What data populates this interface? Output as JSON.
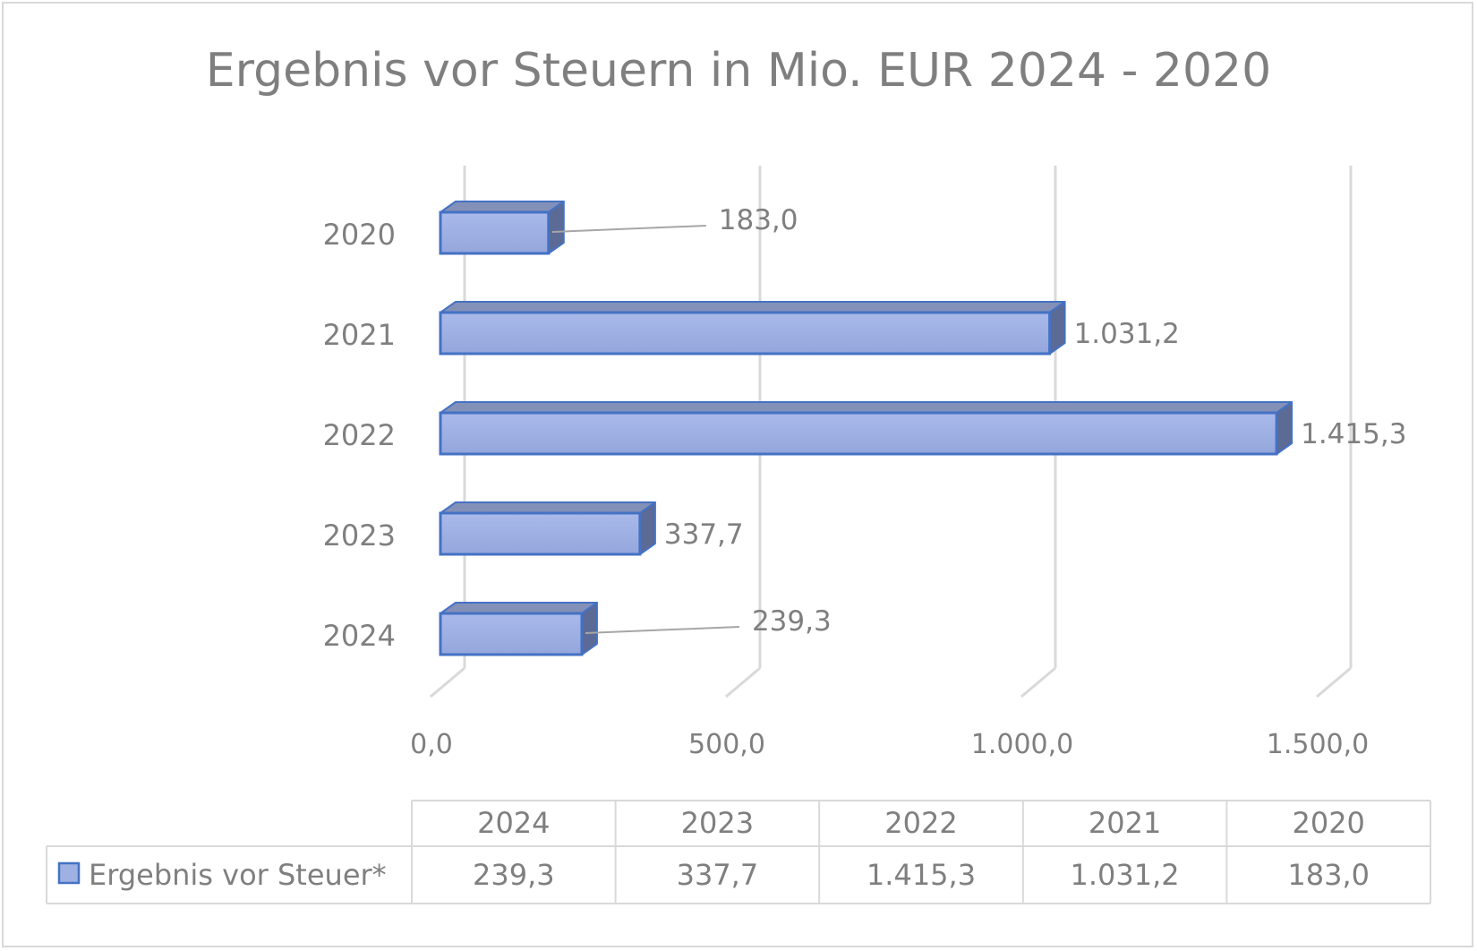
{
  "chart_data": {
    "type": "bar",
    "orientation": "horizontal",
    "style": "3d",
    "title": "Ergebnis vor Steuern in Mio. EUR 2024 - 2020",
    "categories": [
      "2020",
      "2021",
      "2022",
      "2023",
      "2024"
    ],
    "series": [
      {
        "name": "Ergebnis vor Steuer*",
        "values": [
          183.0,
          1031.2,
          1415.3,
          337.7,
          239.3
        ],
        "value_labels": [
          "183,0",
          "1.031,2",
          "1.415,3",
          "337,7",
          "239,3"
        ]
      }
    ],
    "xlim": [
      0,
      1500
    ],
    "x_ticks": [
      0,
      500,
      1000,
      1500
    ],
    "x_tick_labels": [
      "0,0",
      "500,0",
      "1.000,0",
      "1.500,0"
    ],
    "grid": true,
    "legend": "data-table",
    "colors": {
      "bar_front": "#9fb0e3",
      "bar_top": "#8390b8",
      "bar_side": "#5c6a96",
      "bar_border": "#4472c4",
      "text": "#7f7f7f",
      "grid": "#d9d9d9"
    },
    "data_table": {
      "columns": [
        "2024",
        "2023",
        "2022",
        "2021",
        "2020"
      ],
      "row_label": "Ergebnis vor Steuer*",
      "values": [
        "239,3",
        "337,7",
        "1.415,3",
        "1.031,2",
        "183,0"
      ]
    }
  }
}
